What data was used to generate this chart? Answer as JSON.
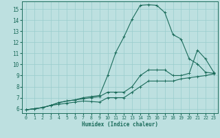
{
  "title": "",
  "xlabel": "Humidex (Indice chaleur)",
  "bg_color": "#bde0e0",
  "grid_color": "#99cccc",
  "line_color": "#1a6b5a",
  "xlim": [
    -0.5,
    23.5
  ],
  "ylim": [
    5.6,
    15.7
  ],
  "xticks": [
    0,
    1,
    2,
    3,
    4,
    5,
    6,
    7,
    8,
    9,
    10,
    11,
    12,
    13,
    14,
    15,
    16,
    17,
    18,
    19,
    20,
    21,
    22,
    23
  ],
  "yticks": [
    6,
    7,
    8,
    9,
    10,
    11,
    12,
    13,
    14,
    15
  ],
  "lines": [
    {
      "x": [
        0,
        1,
        2,
        3,
        4,
        5,
        6,
        7,
        8,
        9,
        10,
        11,
        12,
        13,
        14,
        15,
        16,
        17,
        18,
        19,
        20,
        21,
        22,
        23
      ],
      "y": [
        5.9,
        6.0,
        6.1,
        6.3,
        6.55,
        6.7,
        6.8,
        7.0,
        7.1,
        7.2,
        9.0,
        11.1,
        12.5,
        14.1,
        15.35,
        15.4,
        15.35,
        14.7,
        12.7,
        12.3,
        10.5,
        10.05,
        9.3,
        9.2
      ]
    },
    {
      "x": [
        0,
        1,
        2,
        3,
        4,
        5,
        6,
        7,
        8,
        9,
        10,
        11,
        12,
        13,
        14,
        15,
        16,
        17,
        18,
        19,
        20,
        21,
        22,
        23
      ],
      "y": [
        5.9,
        6.0,
        6.1,
        6.3,
        6.55,
        6.7,
        6.8,
        6.9,
        7.0,
        7.1,
        7.5,
        7.5,
        7.5,
        8.0,
        9.0,
        9.5,
        9.5,
        9.5,
        9.0,
        9.0,
        9.2,
        11.3,
        10.5,
        9.3
      ]
    },
    {
      "x": [
        0,
        1,
        2,
        3,
        4,
        5,
        6,
        7,
        8,
        9,
        10,
        11,
        12,
        13,
        14,
        15,
        16,
        17,
        18,
        19,
        20,
        21,
        22,
        23
      ],
      "y": [
        5.9,
        6.0,
        6.1,
        6.3,
        6.4,
        6.5,
        6.6,
        6.7,
        6.65,
        6.6,
        7.0,
        7.0,
        7.0,
        7.5,
        8.0,
        8.5,
        8.5,
        8.5,
        8.5,
        8.7,
        8.8,
        8.9,
        9.0,
        9.15
      ]
    }
  ]
}
